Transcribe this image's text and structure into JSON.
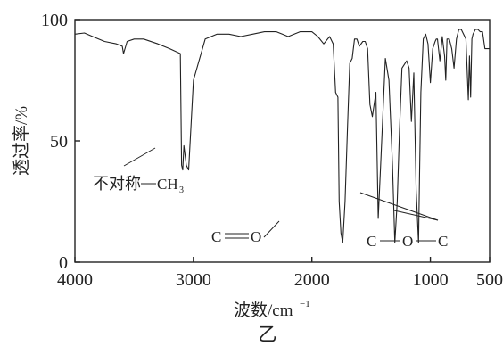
{
  "chart_data": {
    "type": "line",
    "title": "",
    "caption": "乙",
    "xlabel": "波数/cm",
    "xlabel_superscript": "−1",
    "ylabel": "透过率/%",
    "xlim": [
      4000,
      500
    ],
    "ylim": [
      0,
      100
    ],
    "x_ticks": [
      4000,
      3000,
      2000,
      1000,
      500
    ],
    "x_tick_labels": [
      "4000",
      "3000",
      "2000",
      "1000",
      "500"
    ],
    "y_ticks": [
      0,
      50,
      100
    ],
    "y_tick_labels": [
      "0",
      "50",
      "100"
    ],
    "x_axis_reversed": true,
    "grid": false,
    "series": [
      {
        "x": [
          4000,
          3920,
          3850,
          3750,
          3650,
          3600,
          3590,
          3560,
          3500,
          3420,
          3300,
          3200,
          3110,
          3100,
          3090,
          3080,
          3060,
          3040,
          3000,
          2900,
          2800,
          2700,
          2600,
          2500,
          2400,
          2300,
          2250,
          2200,
          2100,
          2000,
          1950,
          1900,
          1850,
          1820,
          1800,
          1780,
          1770,
          1755,
          1740,
          1720,
          1700,
          1680,
          1660,
          1640,
          1620,
          1600,
          1570,
          1550,
          1530,
          1510,
          1490,
          1460,
          1440,
          1420,
          1380,
          1350,
          1320,
          1300,
          1280,
          1260,
          1240,
          1200,
          1180,
          1160,
          1140,
          1120,
          1100,
          1090,
          1080,
          1060,
          1040,
          1020,
          1000,
          980,
          960,
          950,
          940,
          920,
          900,
          880,
          870,
          860,
          840,
          820,
          800,
          780,
          760,
          740,
          700,
          680,
          670,
          660,
          650,
          640,
          620,
          600,
          580,
          560,
          540,
          520,
          500
        ],
        "y": [
          94,
          94.5,
          93,
          91,
          90,
          89,
          86,
          91,
          92,
          92,
          90,
          88,
          86,
          40,
          38,
          48,
          40,
          38,
          75,
          92,
          94,
          94,
          93,
          94,
          95,
          95,
          94,
          93,
          95,
          95,
          93,
          90,
          93,
          90,
          70,
          68,
          25,
          12,
          8,
          25,
          55,
          82,
          84,
          92,
          92,
          89,
          91,
          91,
          88,
          65,
          60,
          70,
          18,
          40,
          84,
          75,
          40,
          8,
          25,
          55,
          80,
          83,
          80,
          58,
          78,
          30,
          8,
          40,
          70,
          92,
          94,
          90,
          74,
          88,
          91,
          92,
          92,
          83,
          93,
          85,
          75,
          92,
          92,
          88,
          80,
          92,
          96,
          96,
          92,
          67,
          85,
          68,
          92,
          94,
          96,
          96,
          95,
          95,
          88,
          88,
          88
        ]
      }
    ],
    "annotations": {
      "asym_label": "不对称",
      "asym_group": "CH",
      "asym_subscript": "3",
      "carbonyl_atom1": "C",
      "carbonyl_atom2": "O",
      "ether_atom1": "C",
      "ether_atom2": "O",
      "ether_atom3": "C"
    }
  }
}
